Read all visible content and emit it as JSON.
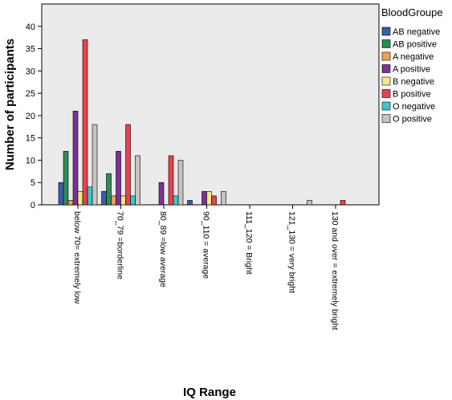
{
  "chart_data": {
    "type": "bar",
    "xlabel": "IQ Range",
    "ylabel": "Number of participants",
    "ylim": [
      0,
      45
    ],
    "yticks": [
      0,
      5,
      10,
      15,
      20,
      25,
      30,
      35,
      40
    ],
    "grid": false,
    "legend_position": "right",
    "legend_title": "BloodGroupe",
    "categories": [
      "below 70= extremely low",
      "70_79 =borderline",
      "80_89 =low average",
      "90_110 = average",
      "111_120 = Bright",
      "121_130 = very bright",
      "130 and over = extremely bright"
    ],
    "series": [
      {
        "name": "AB negative",
        "color": "#3a5fa8",
        "values": [
          5,
          3,
          0,
          1,
          0,
          0,
          0
        ]
      },
      {
        "name": "AB positive",
        "color": "#2e8b57",
        "values": [
          12,
          7,
          0,
          0,
          0,
          0,
          0
        ]
      },
      {
        "name": "A negative",
        "color": "#f5a05a",
        "values": [
          1,
          2,
          0,
          0,
          0,
          0,
          0
        ]
      },
      {
        "name": "A positive",
        "color": "#7b3294",
        "values": [
          21,
          12,
          5,
          3,
          0,
          0,
          0
        ]
      },
      {
        "name": "B negative",
        "color": "#f3ea8a",
        "values": [
          3,
          2,
          0,
          3,
          0,
          0,
          0
        ]
      },
      {
        "name": "B positive",
        "color": "#e8414f",
        "values": [
          37,
          18,
          11,
          2,
          0,
          0,
          1
        ]
      },
      {
        "name": "O negative",
        "color": "#3cc8c8",
        "values": [
          4,
          2,
          2,
          0,
          0,
          0,
          0
        ]
      },
      {
        "name": "O positive",
        "color": "#c4c4c4",
        "values": [
          18,
          11,
          10,
          3,
          0,
          1,
          0
        ]
      }
    ]
  }
}
